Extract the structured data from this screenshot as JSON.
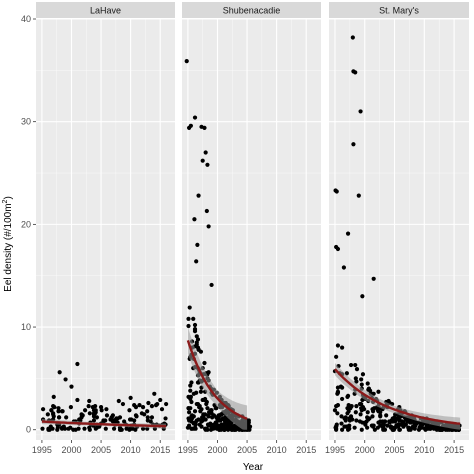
{
  "chart_data": {
    "type": "scatter",
    "xlabel": "Year",
    "ylabel_main": "Eel density (#/100m",
    "ylabel_sup": "2",
    "ylabel_tail": ")",
    "xlim": [
      1994,
      2017.5
    ],
    "ylim": [
      -1,
      40
    ],
    "x_ticks": [
      1995,
      2000,
      2005,
      2010,
      2015
    ],
    "y_ticks": [
      0,
      10,
      20,
      30,
      40
    ],
    "grid": true,
    "colors": {
      "panel_bg": "#ebebeb",
      "strip_bg": "#d9d9d9",
      "grid_major": "#ffffff",
      "point": "#000000",
      "fit_line": "#8b1a1a",
      "ribbon": "#999999"
    },
    "panels": [
      {
        "name": "LaHave",
        "fit": {
          "a": 0.8,
          "b": 0.04,
          "x0": 1995,
          "x1": 2016,
          "se": 0.25
        },
        "outliers": [
          [
            1998,
            5.6
          ],
          [
            1999,
            4.9
          ],
          [
            2000,
            4.2
          ],
          [
            2001,
            6.4
          ],
          [
            2001,
            2.9
          ],
          [
            2003,
            2.8
          ],
          [
            2008,
            2.8
          ],
          [
            2010,
            3.1
          ],
          [
            2013,
            2.6
          ],
          [
            2014,
            3.5
          ],
          [
            2015,
            2.9
          ],
          [
            2016,
            2.5
          ],
          [
            1997,
            3.2
          ],
          [
            2005,
            2.2
          ]
        ],
        "bulk": {
          "x0": 1995,
          "x1": 2016,
          "count": 150,
          "max": 2.5,
          "seed": 11,
          "decay": 0.0
        }
      },
      {
        "name": "Shubenacadie",
        "fit": {
          "a": 8.7,
          "b": 0.21,
          "x0": 1995,
          "x1": 2005,
          "se": 1.3
        },
        "outliers": [
          [
            1994.8,
            35.9
          ],
          [
            1995.2,
            29.4
          ],
          [
            1995.5,
            29.6
          ],
          [
            1996.2,
            30.4
          ],
          [
            1997.3,
            29.5
          ],
          [
            1997.5,
            26.2
          ],
          [
            1997.8,
            29.4
          ],
          [
            1998,
            27.0
          ],
          [
            1996.8,
            22.8
          ],
          [
            1998.3,
            25.8
          ],
          [
            1996.4,
            16.4
          ],
          [
            1996.1,
            20.5
          ],
          [
            1998.2,
            21.3
          ],
          [
            1998.5,
            19.8
          ],
          [
            1999.0,
            14.1
          ],
          [
            1996.6,
            18.0
          ]
        ],
        "bulk": {
          "x0": 1995,
          "x1": 2005.5,
          "count": 320,
          "max": 14,
          "seed": 23,
          "decay": 0.26
        }
      },
      {
        "name": "St. Mary's",
        "fit": {
          "a": 5.9,
          "b": 0.11,
          "x0": 1995,
          "x1": 2016,
          "se": 0.6
        },
        "outliers": [
          [
            1998,
            38.2
          ],
          [
            1998.1,
            34.9
          ],
          [
            1998.4,
            34.8
          ],
          [
            1999.3,
            31.0
          ],
          [
            1998.1,
            27.8
          ],
          [
            1999.0,
            22.8
          ],
          [
            1995.1,
            23.3
          ],
          [
            1995.3,
            23.2
          ],
          [
            1995.2,
            17.8
          ],
          [
            1995.5,
            17.6
          ],
          [
            2001.5,
            14.7
          ],
          [
            1996.5,
            15.8
          ],
          [
            1997.2,
            19.1
          ],
          [
            1999.6,
            13.0
          ]
        ],
        "bulk": {
          "x0": 1995,
          "x1": 2016,
          "count": 330,
          "max": 11,
          "seed": 37,
          "decay": 0.15
        }
      }
    ]
  }
}
